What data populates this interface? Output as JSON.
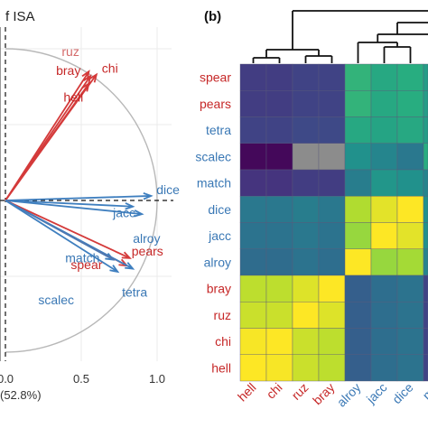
{
  "chart_data": [
    {
      "type": "scatter",
      "panel": "left",
      "title": "f ISA",
      "xlabel": "(52.8%)",
      "x_ticks": [
        "0.0",
        "0.5",
        "1.0"
      ],
      "xlim": [
        -0.02,
        1.1
      ],
      "ylim": [
        -0.8,
        1.0
      ],
      "circle_radius": 1.0,
      "vectors": [
        {
          "name": "ruz",
          "x": 0.55,
          "y": 0.85,
          "color": "#d43a3a",
          "label_color": "#d46a6a"
        },
        {
          "name": "bray",
          "x": 0.56,
          "y": 0.82,
          "color": "#d43a3a",
          "label_color": "#c62828"
        },
        {
          "name": "chi",
          "x": 0.6,
          "y": 0.83,
          "color": "#d43a3a",
          "label_color": "#c62828"
        },
        {
          "name": "hell",
          "x": 0.55,
          "y": 0.77,
          "color": "#d43a3a",
          "label_color": "#c62828"
        },
        {
          "name": "dice",
          "x": 0.96,
          "y": 0.03,
          "color": "#3f7fbf",
          "label_color": "#3a78b5"
        },
        {
          "name": "jacc",
          "x": 0.84,
          "y": -0.04,
          "color": "#3f7fbf",
          "label_color": "#3a78b5"
        },
        {
          "name": "alroy",
          "x": 0.9,
          "y": -0.09,
          "color": "#3f7fbf",
          "label_color": "#3a78b5"
        },
        {
          "name": "pears",
          "x": 0.82,
          "y": -0.38,
          "color": "#d43a3a",
          "label_color": "#c62828"
        },
        {
          "name": "match",
          "x": 0.71,
          "y": -0.39,
          "color": "#3f7fbf",
          "label_color": "#3a78b5"
        },
        {
          "name": "spear",
          "x": 0.8,
          "y": -0.43,
          "color": "#d43a3a",
          "label_color": "#c62828"
        },
        {
          "name": "scalec",
          "x": 0.74,
          "y": -0.47,
          "color": "#3f7fbf",
          "label_color": "#3a78b5"
        },
        {
          "name": "tetra",
          "x": 0.84,
          "y": -0.45,
          "color": "#3f7fbf",
          "label_color": "#3a78b5"
        }
      ]
    },
    {
      "type": "heatmap",
      "panel": "right",
      "title": "(b)",
      "rows": [
        "spear",
        "pears",
        "tetra",
        "scalec",
        "match",
        "dice",
        "jacc",
        "alroy",
        "bray",
        "ruz",
        "chi",
        "hell"
      ],
      "row_colors": [
        "#c62828",
        "#c62828",
        "#3a78b5",
        "#3a78b5",
        "#3a78b5",
        "#3a78b5",
        "#3a78b5",
        "#3a78b5",
        "#c62828",
        "#c62828",
        "#c62828",
        "#c62828"
      ],
      "columns": [
        "hell",
        "chi",
        "ruz",
        "bray",
        "alroy",
        "jacc",
        "dice",
        "ma"
      ],
      "column_colors": [
        "#c62828",
        "#c62828",
        "#c62828",
        "#c62828",
        "#3a78b5",
        "#3a78b5",
        "#3a78b5",
        "#3a78b5"
      ],
      "colormap": [
        "#440154",
        "#472d7b",
        "#3b528b",
        "#2c728e",
        "#21918c",
        "#28ae80",
        "#5ec962",
        "#addc30",
        "#fde725"
      ],
      "missing_color": "#8c8c8c",
      "values": [
        [
          0.18,
          0.18,
          0.2,
          0.2,
          0.65,
          0.6,
          0.62,
          0.55
        ],
        [
          0.18,
          0.18,
          0.2,
          0.2,
          0.65,
          0.6,
          0.62,
          0.55
        ],
        [
          0.2,
          0.2,
          0.22,
          0.22,
          0.6,
          0.58,
          0.6,
          0.55
        ],
        [
          0.02,
          0.02,
          null,
          null,
          0.5,
          0.45,
          0.4,
          0.62
        ],
        [
          0.15,
          0.15,
          0.18,
          0.18,
          0.42,
          0.52,
          0.5,
          0.45
        ],
        [
          0.4,
          0.4,
          0.42,
          0.4,
          0.88,
          0.96,
          1.0,
          0.5
        ],
        [
          0.38,
          0.38,
          0.4,
          0.38,
          0.84,
          1.0,
          0.96,
          0.5
        ],
        [
          0.35,
          0.35,
          0.38,
          0.36,
          1.0,
          0.84,
          0.86,
          0.45
        ],
        [
          0.9,
          0.9,
          0.95,
          1.0,
          0.3,
          0.36,
          0.38,
          0.2
        ],
        [
          0.92,
          0.92,
          1.0,
          0.95,
          0.3,
          0.36,
          0.38,
          0.2
        ],
        [
          0.99,
          1.0,
          0.92,
          0.9,
          0.3,
          0.36,
          0.38,
          0.2
        ],
        [
          1.0,
          0.99,
          0.92,
          0.9,
          0.3,
          0.36,
          0.38,
          0.2
        ]
      ]
    }
  ]
}
